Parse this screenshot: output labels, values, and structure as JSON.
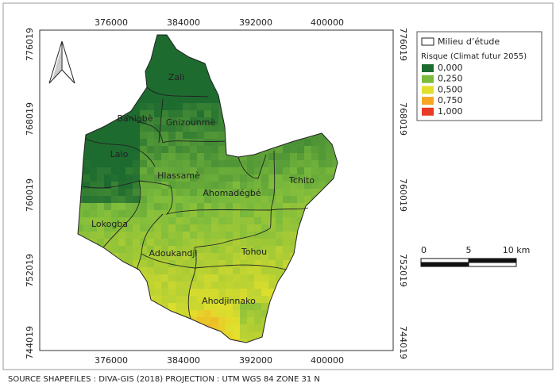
{
  "map": {
    "x_labels": [
      "376000",
      "384000",
      "392000",
      "400000"
    ],
    "y_labels": [
      "776019",
      "768019",
      "760019",
      "752019",
      "744019"
    ],
    "regions": [
      "Zali",
      "Banigbè",
      "Gnizounmè",
      "Lalo",
      "Hlassamè",
      "Ahomadégbé",
      "Tchito",
      "Lokogba",
      "Adoukandji",
      "Tohou",
      "Ahodjinnako"
    ]
  },
  "legend": {
    "boundary": "Milieu d’étude",
    "title": "Risque (Climat futur 2055)",
    "classes": [
      {
        "label": "0,000",
        "color": "#1e6b30"
      },
      {
        "label": "0,250",
        "color": "#7cbb3c"
      },
      {
        "label": "0,500",
        "color": "#e2e02c"
      },
      {
        "label": "0,750",
        "color": "#f5a623"
      },
      {
        "label": "1,000",
        "color": "#e83a24"
      }
    ]
  },
  "scale_bar": {
    "labels": [
      "0",
      "5",
      "10 km"
    ]
  },
  "source": "SOURCE SHAPEFILES : DIVA-GIS (2018) PROJECTION : UTM WGS 84 ZONE 31 N"
}
